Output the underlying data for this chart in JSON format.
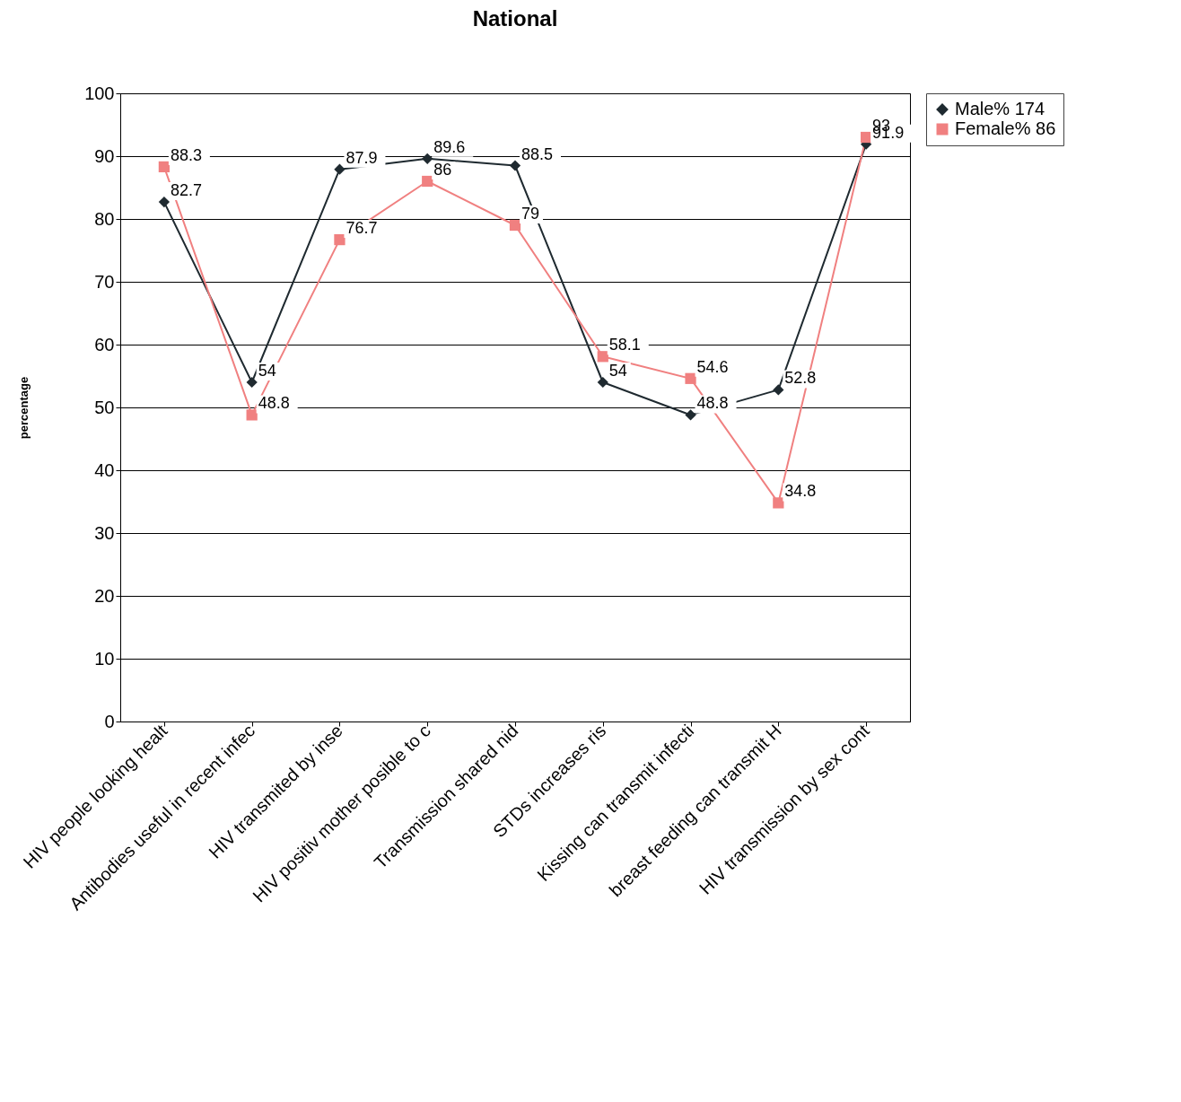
{
  "chart_data": {
    "type": "line",
    "title": "National",
    "ylabel": "percentage",
    "categories": [
      "HIV people looking healt",
      "Antibodies useful in recent infec",
      "HIV transmited by inse",
      "HIV positiv mother posible to c",
      "Transmission shared nid",
      "STDs increases ris",
      "Kissing can transmit infecti",
      "breast feeding can transmit H",
      "HIV transmission by sex cont"
    ],
    "series": [
      {
        "name": "Male% 174",
        "color": "#1f2a30",
        "marker": "diamond",
        "values": [
          82.7,
          54,
          87.9,
          89.6,
          88.5,
          54,
          48.8,
          52.8,
          91.9
        ]
      },
      {
        "name": "Female% 86",
        "color": "#f08080",
        "marker": "square",
        "values": [
          88.3,
          48.8,
          76.7,
          86,
          79,
          58.1,
          54.6,
          34.8,
          93
        ]
      }
    ],
    "ylim": [
      0,
      100
    ],
    "yticks": [
      0,
      10,
      20,
      30,
      40,
      50,
      60,
      70,
      80,
      90,
      100
    ],
    "grid": "y",
    "legend": "right",
    "data_labels": true
  }
}
